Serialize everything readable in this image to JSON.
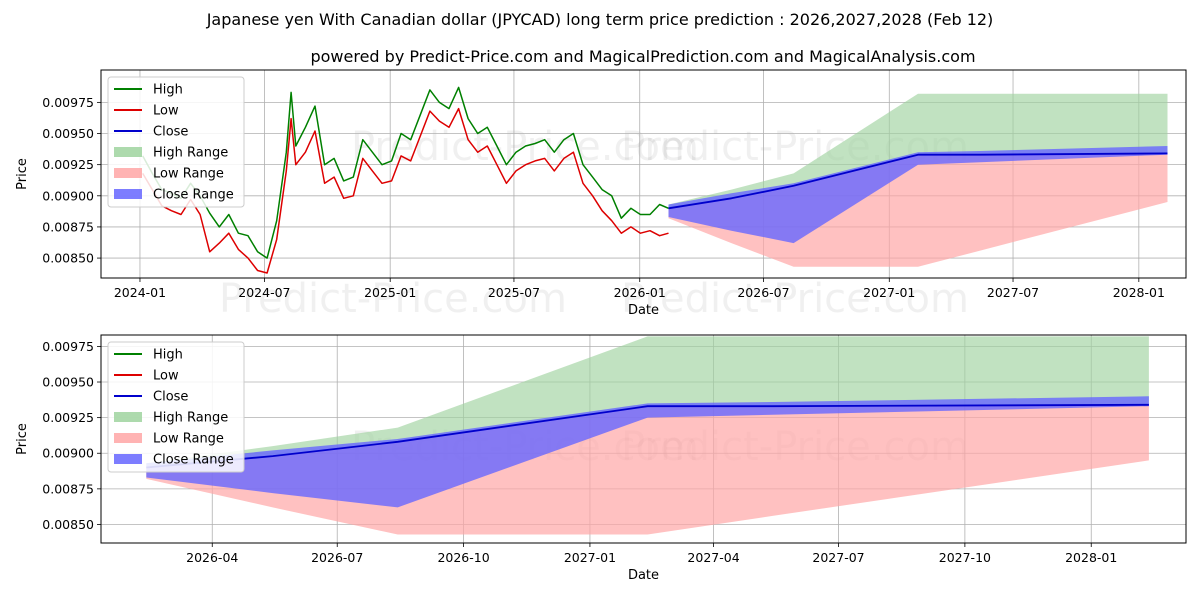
{
  "header": {
    "title": "Japanese yen With Canadian dollar (JPYCAD) long term price prediction : 2026,2027,2028 (Feb 12)",
    "subtitle": "powered by Predict-Price.com and MagicalPrediction.com and MagicalAnalysis.com"
  },
  "watermark": "Predict-Price.com",
  "colors": {
    "high": "#008000",
    "low": "#dd0000",
    "close": "#0000cc",
    "high_range": "#9fd39f",
    "low_range": "#ffa6a6",
    "close_range": "#6666ff",
    "grid": "#b0b0b0"
  },
  "legend": [
    {
      "key": "high",
      "label": "High",
      "kind": "line"
    },
    {
      "key": "low",
      "label": "Low",
      "kind": "line"
    },
    {
      "key": "close",
      "label": "Close",
      "kind": "line"
    },
    {
      "key": "high_range",
      "label": "High Range",
      "kind": "patch"
    },
    {
      "key": "low_range",
      "label": "Low Range",
      "kind": "patch"
    },
    {
      "key": "close_range",
      "label": "Close Range",
      "kind": "patch"
    }
  ],
  "chart_data": [
    {
      "type": "line",
      "panel": "long-term",
      "xlabel": "Date",
      "ylabel": "Price",
      "xlim": [
        "2023-11-05",
        "2028-03-10"
      ],
      "ylim": [
        0.00834,
        0.01001
      ],
      "grid": true,
      "legend_position": "top-left",
      "xticks": [
        {
          "date": "2024-01-01",
          "label": "2024-01"
        },
        {
          "date": "2024-07-01",
          "label": "2024-07"
        },
        {
          "date": "2025-01-01",
          "label": "2025-01"
        },
        {
          "date": "2025-07-01",
          "label": "2025-07"
        },
        {
          "date": "2026-01-01",
          "label": "2026-01"
        },
        {
          "date": "2026-07-01",
          "label": "2026-07"
        },
        {
          "date": "2027-01-01",
          "label": "2027-01"
        },
        {
          "date": "2027-07-01",
          "label": "2027-07"
        },
        {
          "date": "2028-01-01",
          "label": "2028-01"
        }
      ],
      "yticks": [
        {
          "value": 0.0085,
          "label": "0.00850"
        },
        {
          "value": 0.00875,
          "label": "0.00875"
        },
        {
          "value": 0.009,
          "label": "0.00900"
        },
        {
          "value": 0.00925,
          "label": "0.00925"
        },
        {
          "value": 0.0095,
          "label": "0.00950"
        },
        {
          "value": 0.00975,
          "label": "0.00975"
        }
      ],
      "history": {
        "dates": [
          "2024-01-05",
          "2024-01-19",
          "2024-02-02",
          "2024-02-16",
          "2024-03-01",
          "2024-03-15",
          "2024-03-29",
          "2024-04-12",
          "2024-04-26",
          "2024-05-10",
          "2024-05-24",
          "2024-06-07",
          "2024-06-21",
          "2024-07-05",
          "2024-07-19",
          "2024-08-02",
          "2024-08-09",
          "2024-08-16",
          "2024-08-30",
          "2024-09-13",
          "2024-09-27",
          "2024-10-11",
          "2024-10-25",
          "2024-11-08",
          "2024-11-22",
          "2024-12-06",
          "2024-12-20",
          "2025-01-03",
          "2025-01-17",
          "2025-01-31",
          "2025-02-14",
          "2025-02-28",
          "2025-03-14",
          "2025-03-28",
          "2025-04-11",
          "2025-04-25",
          "2025-05-09",
          "2025-05-23",
          "2025-06-06",
          "2025-06-20",
          "2025-07-04",
          "2025-07-18",
          "2025-08-01",
          "2025-08-15",
          "2025-08-29",
          "2025-09-12",
          "2025-09-26",
          "2025-10-10",
          "2025-10-24",
          "2025-11-07",
          "2025-11-21",
          "2025-12-05",
          "2025-12-19",
          "2026-01-02",
          "2026-01-16",
          "2026-01-30",
          "2026-02-12"
        ],
        "high": [
          0.00932,
          0.00918,
          0.00905,
          0.00902,
          0.00898,
          0.0091,
          0.009,
          0.00886,
          0.00875,
          0.00885,
          0.0087,
          0.00868,
          0.00855,
          0.0085,
          0.0088,
          0.00935,
          0.00983,
          0.0094,
          0.00955,
          0.00972,
          0.00925,
          0.0093,
          0.00912,
          0.00915,
          0.00945,
          0.00935,
          0.00925,
          0.00928,
          0.0095,
          0.00945,
          0.00965,
          0.00985,
          0.00975,
          0.0097,
          0.00987,
          0.00962,
          0.0095,
          0.00955,
          0.0094,
          0.00925,
          0.00935,
          0.0094,
          0.00942,
          0.00945,
          0.00935,
          0.00945,
          0.0095,
          0.00925,
          0.00915,
          0.00905,
          0.009,
          0.00882,
          0.0089,
          0.00885,
          0.00885,
          0.00893,
          0.0089
        ],
        "low": [
          0.00918,
          0.00905,
          0.00892,
          0.00888,
          0.00885,
          0.00897,
          0.00885,
          0.00855,
          0.00862,
          0.0087,
          0.00857,
          0.0085,
          0.0084,
          0.00838,
          0.00865,
          0.0092,
          0.00962,
          0.00925,
          0.00935,
          0.00952,
          0.0091,
          0.00915,
          0.00898,
          0.009,
          0.0093,
          0.0092,
          0.0091,
          0.00912,
          0.00932,
          0.00928,
          0.00948,
          0.00968,
          0.0096,
          0.00955,
          0.0097,
          0.00945,
          0.00935,
          0.0094,
          0.00925,
          0.0091,
          0.0092,
          0.00925,
          0.00928,
          0.0093,
          0.0092,
          0.0093,
          0.00935,
          0.0091,
          0.009,
          0.00888,
          0.0088,
          0.0087,
          0.00875,
          0.0087,
          0.00872,
          0.00868,
          0.0087
        ]
      },
      "forecast": {
        "dates": [
          "2026-02-12",
          "2026-05-15",
          "2026-08-14",
          "2027-02-12",
          "2027-05-14",
          "2028-02-12"
        ],
        "close": [
          0.0089,
          0.00898,
          0.00908,
          0.00933,
          0.00933,
          0.00934
        ],
        "close_range_upper": [
          0.00893,
          0.00902,
          0.0091,
          0.00935,
          0.00936,
          0.0094
        ],
        "close_range_lower": [
          0.00883,
          0.00872,
          0.00862,
          0.00925,
          0.00927,
          0.00933
        ],
        "high_range_upper": [
          0.00893,
          0.00905,
          0.00918,
          0.00982,
          0.00982,
          0.00982
        ],
        "low_range_lower": [
          0.00882,
          0.00862,
          0.00843,
          0.00843,
          0.00856,
          0.00895
        ]
      }
    },
    {
      "type": "area",
      "panel": "forecast-zoom",
      "xlabel": "Date",
      "ylabel": "Price",
      "xlim": [
        "2026-01-10",
        "2028-03-10"
      ],
      "ylim": [
        0.00837,
        0.00983
      ],
      "grid": true,
      "legend_position": "top-left",
      "xticks": [
        {
          "date": "2026-04-01",
          "label": "2026-04"
        },
        {
          "date": "2026-07-01",
          "label": "2026-07"
        },
        {
          "date": "2026-10-01",
          "label": "2026-10"
        },
        {
          "date": "2027-01-01",
          "label": "2027-01"
        },
        {
          "date": "2027-04-01",
          "label": "2027-04"
        },
        {
          "date": "2027-07-01",
          "label": "2027-07"
        },
        {
          "date": "2027-10-01",
          "label": "2027-10"
        },
        {
          "date": "2028-01-01",
          "label": "2028-01"
        }
      ],
      "yticks": [
        {
          "value": 0.0085,
          "label": "0.00850"
        },
        {
          "value": 0.00875,
          "label": "0.00875"
        },
        {
          "value": 0.009,
          "label": "0.00900"
        },
        {
          "value": 0.00925,
          "label": "0.00925"
        },
        {
          "value": 0.0095,
          "label": "0.00950"
        },
        {
          "value": 0.00975,
          "label": "0.00975"
        }
      ],
      "forecast": {
        "dates": [
          "2026-02-12",
          "2026-05-15",
          "2026-08-14",
          "2027-02-12",
          "2027-05-14",
          "2028-02-12"
        ],
        "close": [
          0.0089,
          0.00898,
          0.00908,
          0.00933,
          0.00933,
          0.00934
        ],
        "close_range_upper": [
          0.00893,
          0.00902,
          0.0091,
          0.00935,
          0.00936,
          0.0094
        ],
        "close_range_lower": [
          0.00883,
          0.00872,
          0.00862,
          0.00925,
          0.00927,
          0.00933
        ],
        "high_range_upper": [
          0.00893,
          0.00905,
          0.00918,
          0.00982,
          0.00982,
          0.00982
        ],
        "low_range_lower": [
          0.00882,
          0.00862,
          0.00843,
          0.00843,
          0.00856,
          0.00895
        ]
      }
    }
  ]
}
